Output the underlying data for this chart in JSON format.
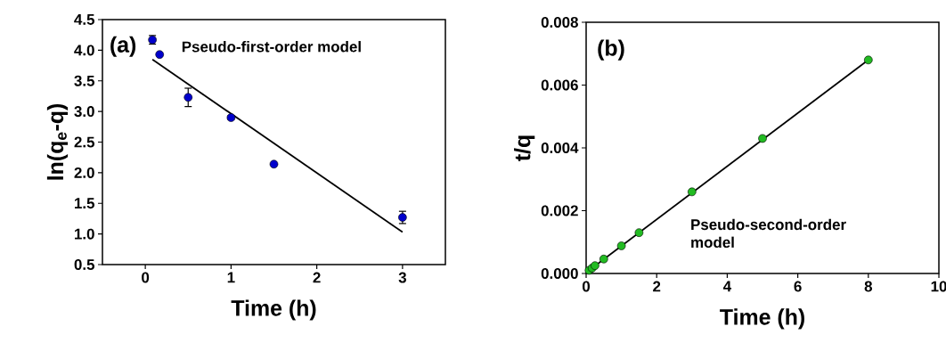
{
  "chart_data": [
    {
      "type": "scatter",
      "xlabel": "Time (h)",
      "ylabel": "ln(q$_{e}$-q)",
      "xlim": [
        -0.5,
        3.5
      ],
      "ylim": [
        0.5,
        4.5
      ],
      "xticks": [
        0,
        1,
        2,
        3
      ],
      "yticks": [
        {
          "value": 0.5,
          "label": "0.5"
        },
        {
          "value": 1,
          "label": "1.0"
        },
        {
          "value": 1.5,
          "label": "1.5"
        },
        {
          "value": 2,
          "label": "2.0"
        },
        {
          "value": 2.5,
          "label": "2.5"
        },
        {
          "value": 3,
          "label": "3.0"
        },
        {
          "value": 3.5,
          "label": "3.5"
        },
        {
          "value": 4,
          "label": "4.0"
        },
        {
          "value": 4.5,
          "label": "4.5"
        }
      ],
      "annotations": [
        "(a)",
        "Pseudo-first-order model"
      ],
      "grid": false,
      "marker": "circle",
      "series": [
        {
          "color": "#0000cc",
          "x": [
            0.083,
            0.167,
            0.5,
            1,
            1.5,
            3
          ],
          "values": [
            4.17,
            3.93,
            3.23,
            2.9,
            2.14,
            1.27
          ],
          "errors": [
            0.07,
            null,
            0.15,
            0.03,
            null,
            0.1
          ]
        },
        {
          "type": "line",
          "marker": "none",
          "line_style": "solid",
          "color": "#000000",
          "x": [
            0.083,
            3
          ],
          "values": [
            3.85,
            1.03
          ]
        }
      ]
    },
    {
      "type": "scatter",
      "xlabel": "Time (h)",
      "ylabel": "t/q",
      "xlim": [
        0,
        10
      ],
      "ylim": [
        0,
        0.008
      ],
      "xticks": [
        0,
        2,
        4,
        6,
        8,
        10
      ],
      "yticks": [
        {
          "value": 0,
          "label": "0.000"
        },
        {
          "value": 0.002,
          "label": "0.002"
        },
        {
          "value": 0.004,
          "label": "0.004"
        },
        {
          "value": 0.006,
          "label": "0.006"
        },
        {
          "value": 0.008,
          "label": "0.008"
        }
      ],
      "annotations": [
        "(b)",
        "Pseudo-second-order model"
      ],
      "grid": false,
      "marker": "circle",
      "series": [
        {
          "color": "#22bb22",
          "x": [
            0.083,
            0.167,
            0.25,
            0.5,
            1,
            1.5,
            3,
            5,
            8
          ],
          "values": [
            0.0001,
            0.00017,
            0.00025,
            0.00046,
            0.00088,
            0.0013,
            0.0026,
            0.0043,
            0.0068
          ]
        },
        {
          "type": "line",
          "marker": "none",
          "line_style": "solid",
          "color": "#000000",
          "x": [
            0.083,
            8
          ],
          "values": [
            0.0001,
            0.0068
          ]
        }
      ]
    }
  ]
}
